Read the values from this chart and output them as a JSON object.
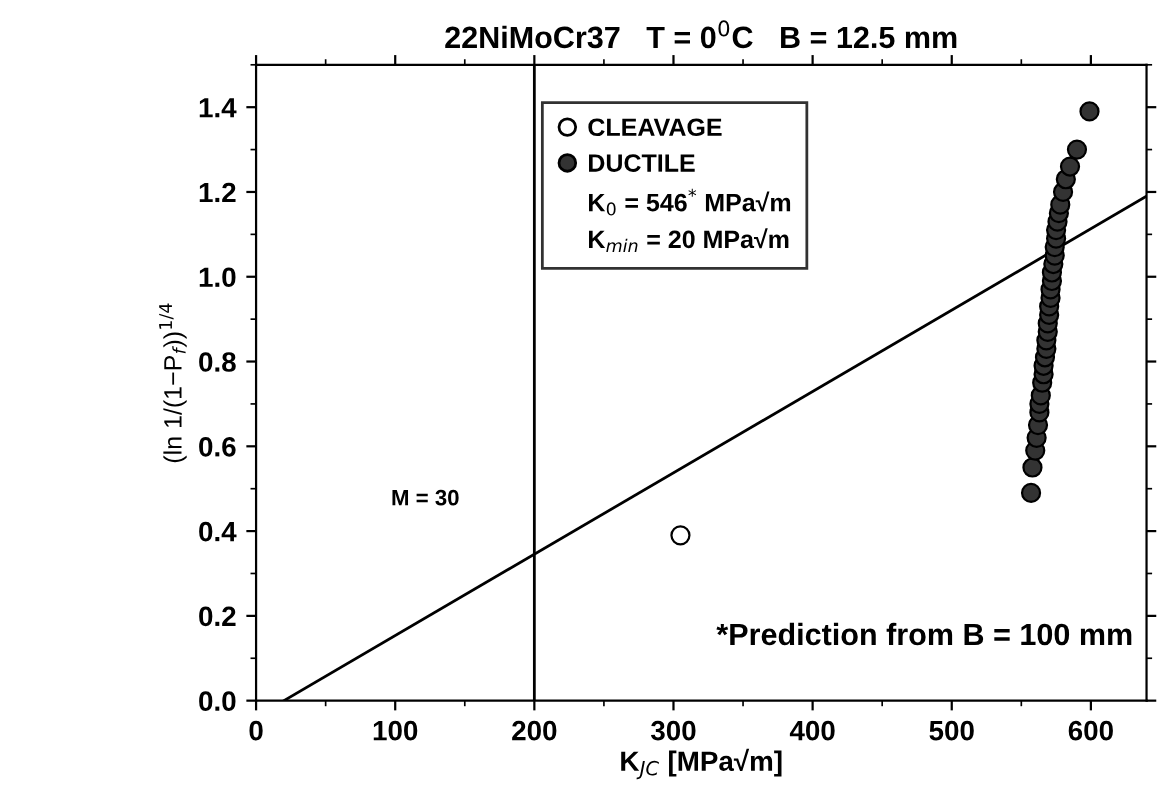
{
  "chart_data": {
    "type": "scatter",
    "title": "22NiMoCr37   T = 0$^{0}$C   B = 12.5 mm",
    "xlabel": "K$_{JC}$ [MPa√m]",
    "ylabel": "(ln 1/(1−P$_{f}$))$^{1/4}$",
    "xlim": [
      0,
      640
    ],
    "xticks": [
      0,
      100,
      200,
      300,
      400,
      500,
      600
    ],
    "ylim": [
      0,
      1.5
    ],
    "yticks": [
      {
        "value": 0,
        "label": "0.0"
      },
      0.2,
      0.4,
      0.6,
      0.8,
      {
        "value": 1,
        "label": "1.0"
      },
      1.2,
      1.4
    ],
    "series": [
      {
        "name": "CLEAVAGE",
        "color": "#ffffff",
        "x": [
          305
        ],
        "values": [
          0.39
        ]
      },
      {
        "name": "DUCTILE",
        "color": "#333333",
        "x": [
          557,
          558,
          560,
          561,
          562,
          563,
          563,
          564,
          565,
          566,
          566,
          567,
          568,
          568,
          569,
          569,
          570,
          570,
          571,
          571,
          572,
          572,
          573,
          574,
          574,
          575,
          575,
          576,
          577,
          578,
          580,
          582,
          585,
          590,
          599
        ],
        "values": [
          0.49,
          0.55,
          0.59,
          0.62,
          0.65,
          0.68,
          0.7,
          0.72,
          0.75,
          0.77,
          0.79,
          0.81,
          0.83,
          0.85,
          0.87,
          0.89,
          0.91,
          0.93,
          0.95,
          0.97,
          0.99,
          1.01,
          1.03,
          1.05,
          1.07,
          1.09,
          1.11,
          1.13,
          1.15,
          1.17,
          1.2,
          1.23,
          1.26,
          1.3,
          1.39
        ]
      },
      {
        "type": "line",
        "marker": "none",
        "color": "#000000",
        "x": [
          20,
          640
        ],
        "values": [
          0,
          1.19
        ]
      }
    ],
    "ref_lines": [
      {
        "axis": "x",
        "value": 200,
        "color": "#000000"
      }
    ],
    "annotations": [
      "K$_{0}$ = 546$^{*}$ MPa√m",
      "K$_{min}$ = 20 MPa√m",
      "M = 30",
      "*Prediction from B = 100 mm"
    ],
    "legend": "top",
    "marker": "circle",
    "grid": false
  }
}
